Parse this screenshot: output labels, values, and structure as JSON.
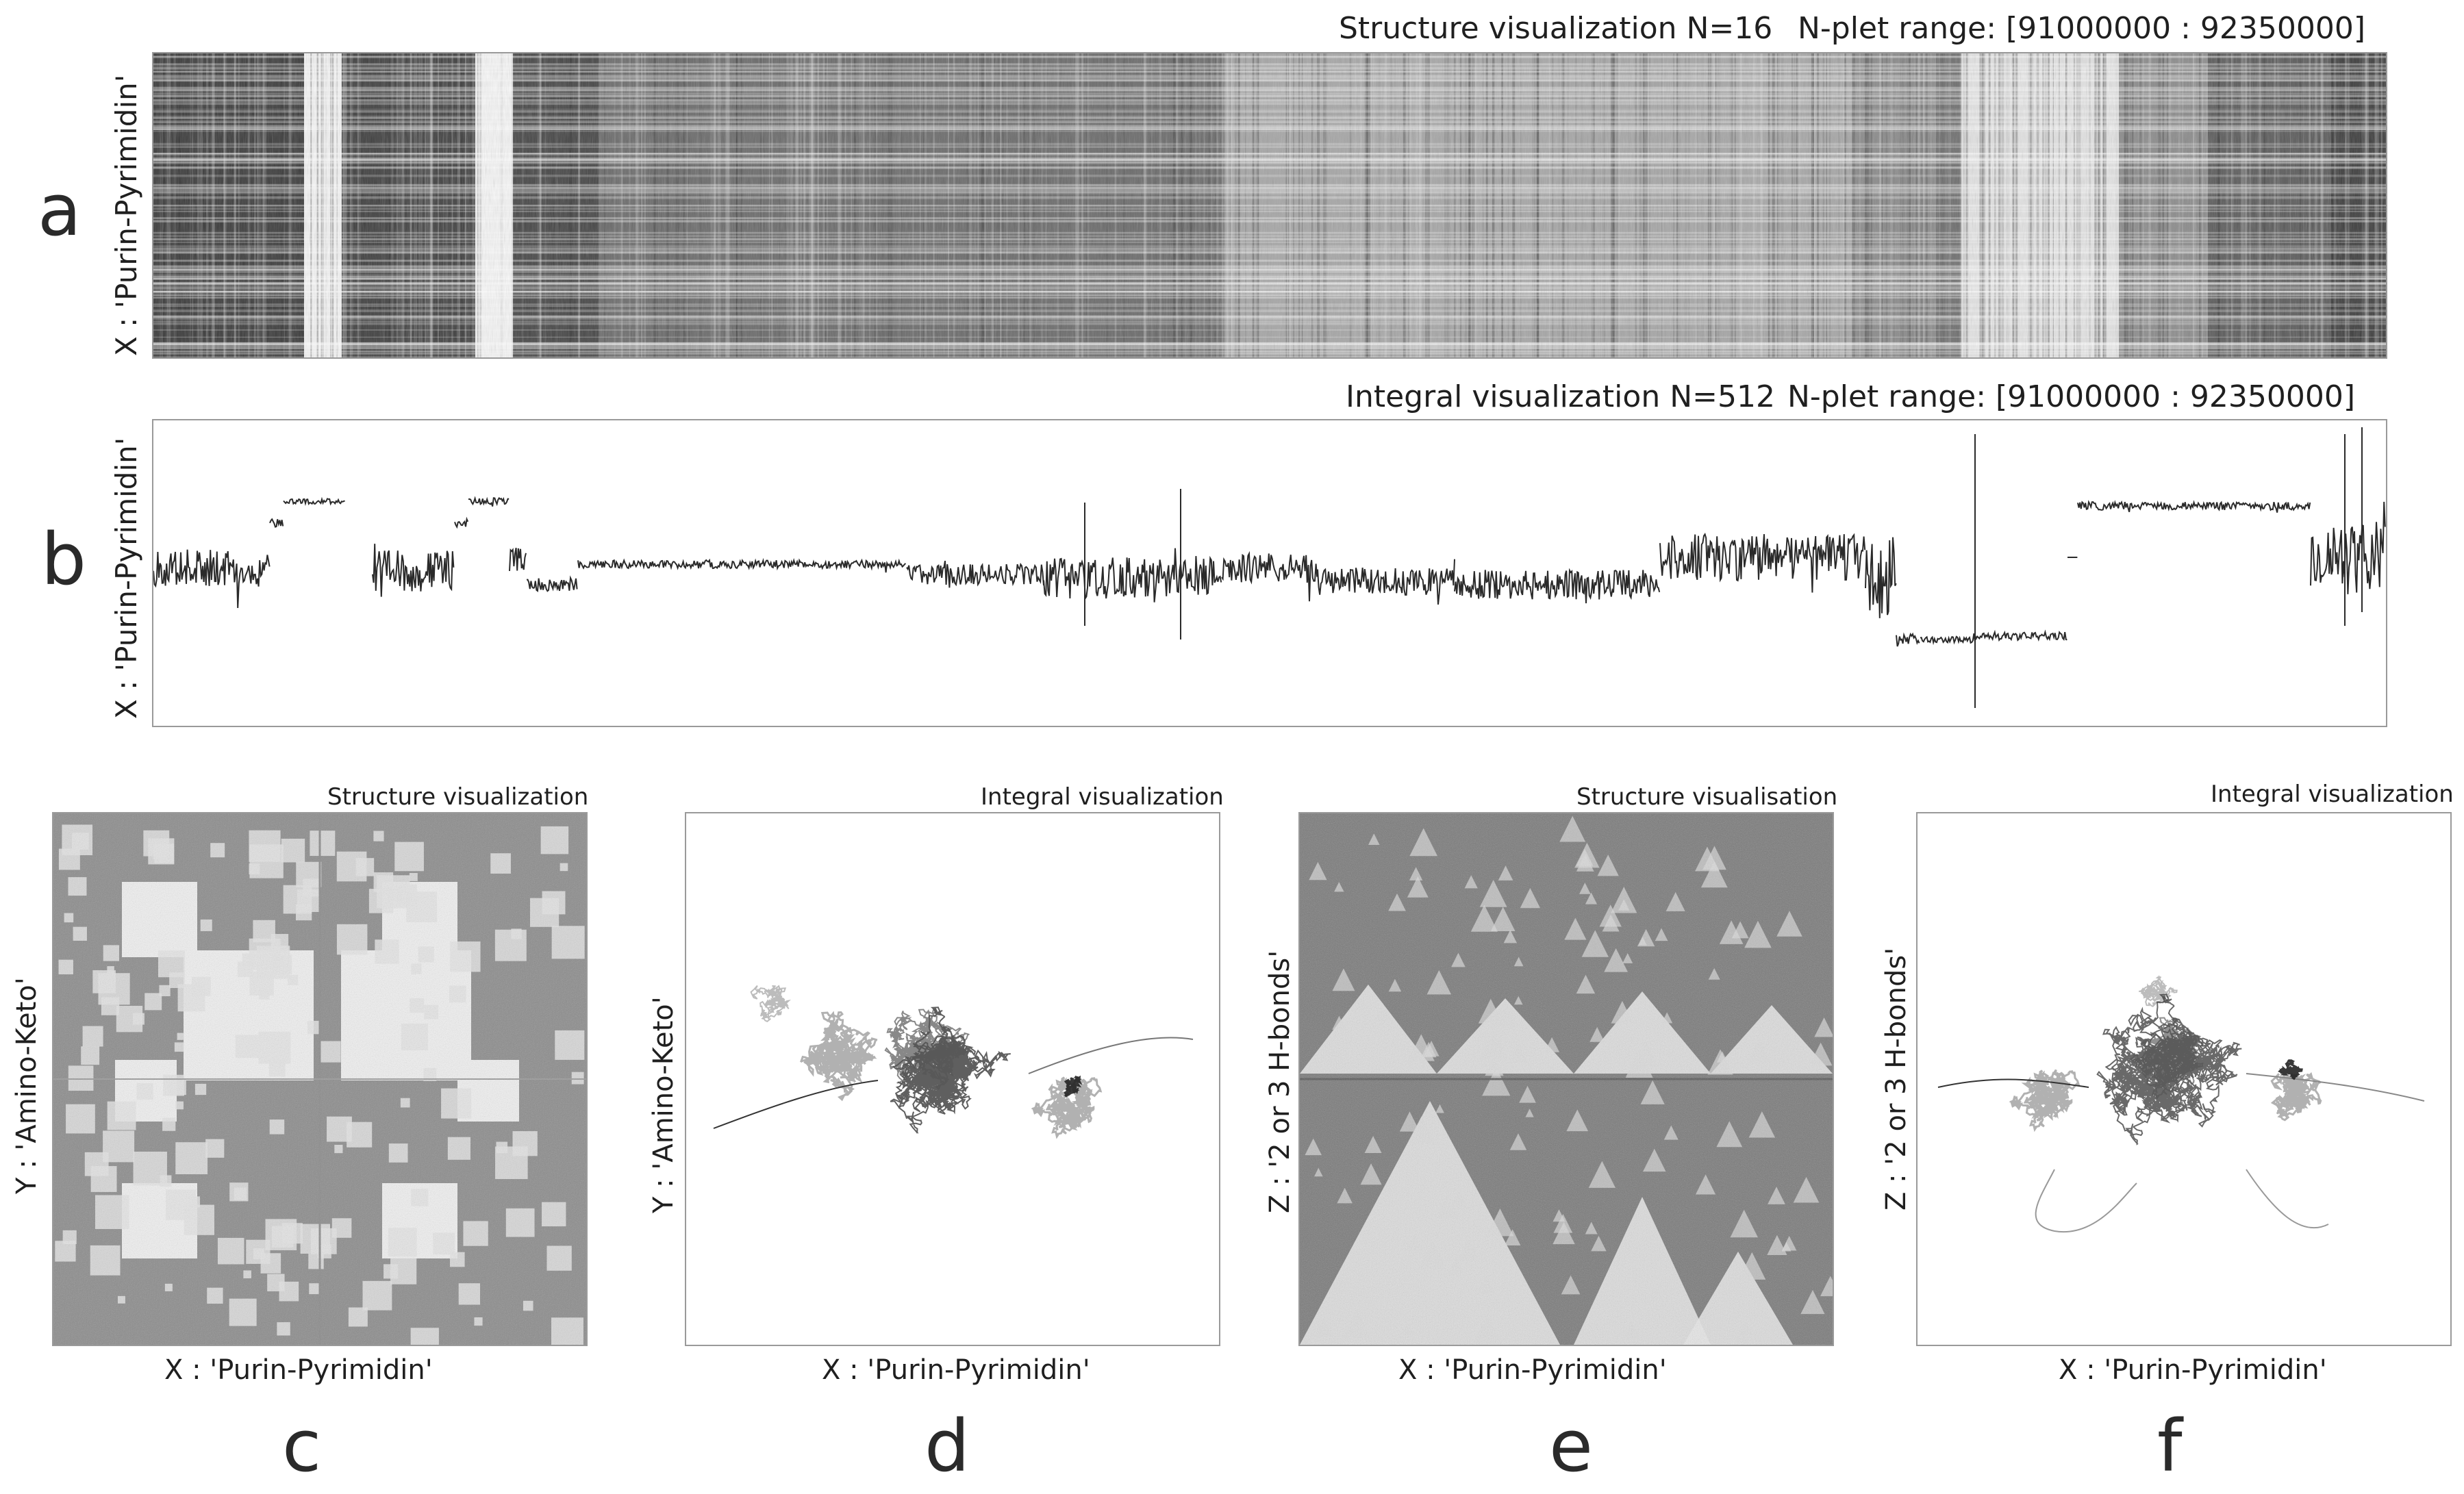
{
  "panels": {
    "a": {
      "letter": "a",
      "title": "Structure visualization N=16",
      "range": "N-plet range: [91000000 : 92350000]",
      "ylabel": "X : 'Purin-Pyrimidin'"
    },
    "b": {
      "letter": "b",
      "title": "Integral visualization N=512",
      "range": "N-plet range: [91000000 : 92350000]",
      "ylabel": "X : 'Purin-Pyrimidin'"
    },
    "c": {
      "letter": "c",
      "title": "Structure visualization",
      "ylabel": "Y : 'Amino-Keto'",
      "xlabel": "X : 'Purin-Pyrimidin'"
    },
    "d": {
      "letter": "d",
      "title": "Integral visualization",
      "ylabel": "Y : 'Amino-Keto'",
      "xlabel": "X : 'Purin-Pyrimidin'"
    },
    "e": {
      "letter": "e",
      "title": "Structure visualisation",
      "ylabel": "Z : '2 or 3 H-bonds'",
      "xlabel": "X : 'Purin-Pyrimidin'"
    },
    "f": {
      "letter": "f",
      "title": "Integral visualization",
      "ylabel": "Z : '2 or 3 H-bonds'",
      "xlabel": "X : 'Purin-Pyrimidin'"
    }
  },
  "colors": {
    "ink": "#2a2a2a",
    "grey": "#a8a8a8",
    "border": "#9a9a9a"
  }
}
